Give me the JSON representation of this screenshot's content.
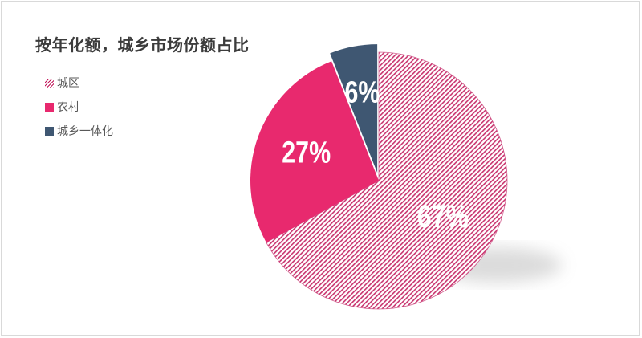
{
  "chart_data": {
    "type": "pie",
    "title": "按年化额，城乡市场份额占比",
    "categories": [
      "城区",
      "农村",
      "城乡一体化"
    ],
    "values": [
      67,
      27,
      6
    ],
    "labels": [
      "67%",
      "27%",
      "6%"
    ],
    "colors": [
      "#d25e8e",
      "#e8296e",
      "#3f5772"
    ],
    "legend": "left",
    "exploded_slice": "城乡一体化"
  }
}
